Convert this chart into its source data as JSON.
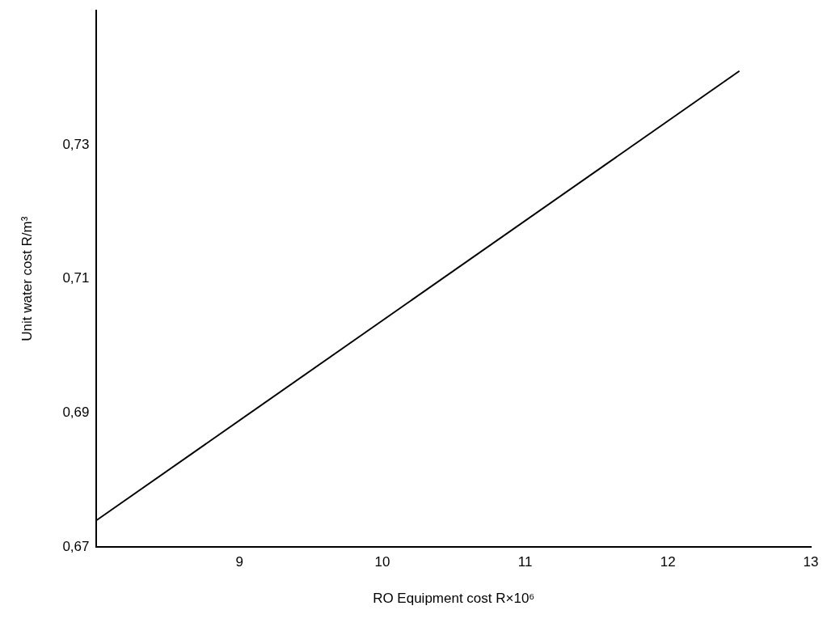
{
  "chart_data": {
    "type": "line",
    "xlabel": "RO Equipment cost R×10⁶",
    "ylabel": "Unit water cost R/m³",
    "series": [
      {
        "x": [
          8,
          12.5
        ],
        "values": [
          0.674,
          0.741
        ],
        "color": "#000000"
      }
    ],
    "xlim": [
      8,
      13
    ],
    "xticks": [
      9,
      10,
      11,
      12,
      13
    ],
    "ylim": [
      0.67,
      0.75
    ],
    "yticks": [
      {
        "value": 0.67,
        "label": "0,67"
      },
      {
        "value": 0.69,
        "label": "0,69"
      },
      {
        "value": 0.71,
        "label": "0,71"
      },
      {
        "value": 0.73,
        "label": "0,73"
      }
    ],
    "grid": false,
    "legend": false,
    "marker": "none",
    "line_style": "solid"
  }
}
